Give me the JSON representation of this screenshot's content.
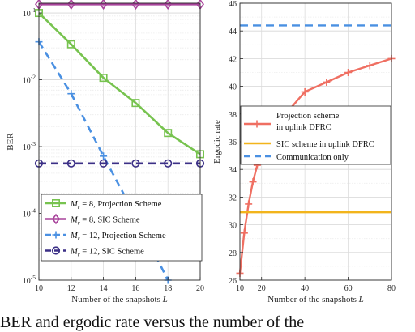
{
  "chart_data": [
    {
      "type": "line",
      "yscale": "log",
      "xlabel": "Number of the snapshots L",
      "ylabel": "BER",
      "xlim": [
        10,
        20
      ],
      "ylim": [
        1e-05,
        0.14
      ],
      "xticks": [
        "10",
        "12",
        "14",
        "16",
        "18",
        "20"
      ],
      "yticks": [
        "10^-1",
        "10^-2",
        "10^-3",
        "10^-4",
        "10^-5"
      ],
      "grid": true,
      "legend_position": "bottom-left",
      "x": [
        10,
        12,
        14,
        16,
        18,
        20
      ],
      "series": [
        {
          "name": "M_r = 8, Projection Scheme",
          "color": "#77c34f",
          "marker": "square",
          "dash": "solid",
          "x": [
            10,
            12,
            14,
            16,
            18,
            20
          ],
          "values": [
            0.1,
            0.034,
            0.0107,
            0.0045,
            0.0016,
            0.00077
          ]
        },
        {
          "name": "M_r = 8, SIC Scheme",
          "color": "#a8439b",
          "marker": "diamond",
          "dash": "solid",
          "x": [
            10,
            12,
            14,
            16,
            18,
            20
          ],
          "values": [
            0.135,
            0.135,
            0.135,
            0.135,
            0.135,
            0.135
          ]
        },
        {
          "name": "M_r = 12, Projection Scheme",
          "color": "#4a90e2",
          "marker": "plus",
          "dash": "dashed",
          "x": [
            10,
            12,
            14,
            16,
            18
          ],
          "values": [
            0.037,
            0.0062,
            0.00072,
            9e-05,
            1e-05
          ]
        },
        {
          "name": "M_r = 12, SIC Scheme",
          "color": "#3b2f86",
          "marker": "circle",
          "dash": "dashed",
          "x": [
            10,
            12,
            14,
            16,
            18,
            20
          ],
          "values": [
            0.00056,
            0.00056,
            0.00056,
            0.00056,
            0.00056,
            0.00056
          ]
        }
      ],
      "legend_labels": [
        {
          "math": "M",
          "sub": "r",
          "rest": " = 8, Projection Scheme"
        },
        {
          "math": "M",
          "sub": "r",
          "rest": " = 8, SIC Scheme"
        },
        {
          "math": "M",
          "sub": "r",
          "rest": " = 12, Projection Scheme"
        },
        {
          "math": "M",
          "sub": "r",
          "rest": " = 12, SIC Scheme"
        }
      ]
    },
    {
      "type": "line",
      "xlabel": "Number of the snapshots L",
      "ylabel": "Ergodic rate",
      "xlim": [
        10,
        80
      ],
      "ylim": [
        26,
        46
      ],
      "xticks": [
        10,
        20,
        40,
        60,
        80
      ],
      "yticks": [
        26,
        28,
        30,
        32,
        34,
        36,
        38,
        40,
        42,
        44,
        46
      ],
      "grid": true,
      "legend_position": "middle",
      "series": [
        {
          "name": "Projection scheme in uplink DFRC",
          "legend_lines": [
            "Projection scheme",
            "in uplink DFRC"
          ],
          "color": "#ef6f62",
          "marker": "plus",
          "dash": "solid",
          "x": [
            10,
            12,
            14,
            16,
            18,
            20,
            30,
            40,
            50,
            60,
            70,
            80
          ],
          "values": [
            26.5,
            29.4,
            31.5,
            33.1,
            34.3,
            35.3,
            37.8,
            39.6,
            40.3,
            41.0,
            41.5,
            42.0
          ]
        },
        {
          "name": "SIC scheme in uplink DFRC",
          "legend_lines": [
            "SIC scheme in uplink DFRC"
          ],
          "color": "#f2b41c",
          "marker": "none",
          "dash": "solid",
          "x": [
            10,
            80
          ],
          "values": [
            30.9,
            30.9
          ]
        },
        {
          "name": "Communication only",
          "legend_lines": [
            "Communication only"
          ],
          "color": "#4a90e2",
          "marker": "none",
          "dash": "dashed",
          "x": [
            10,
            80
          ],
          "values": [
            44.4,
            44.4
          ]
        }
      ]
    }
  ],
  "caption": "BER and ergodic rate versus the number of the"
}
